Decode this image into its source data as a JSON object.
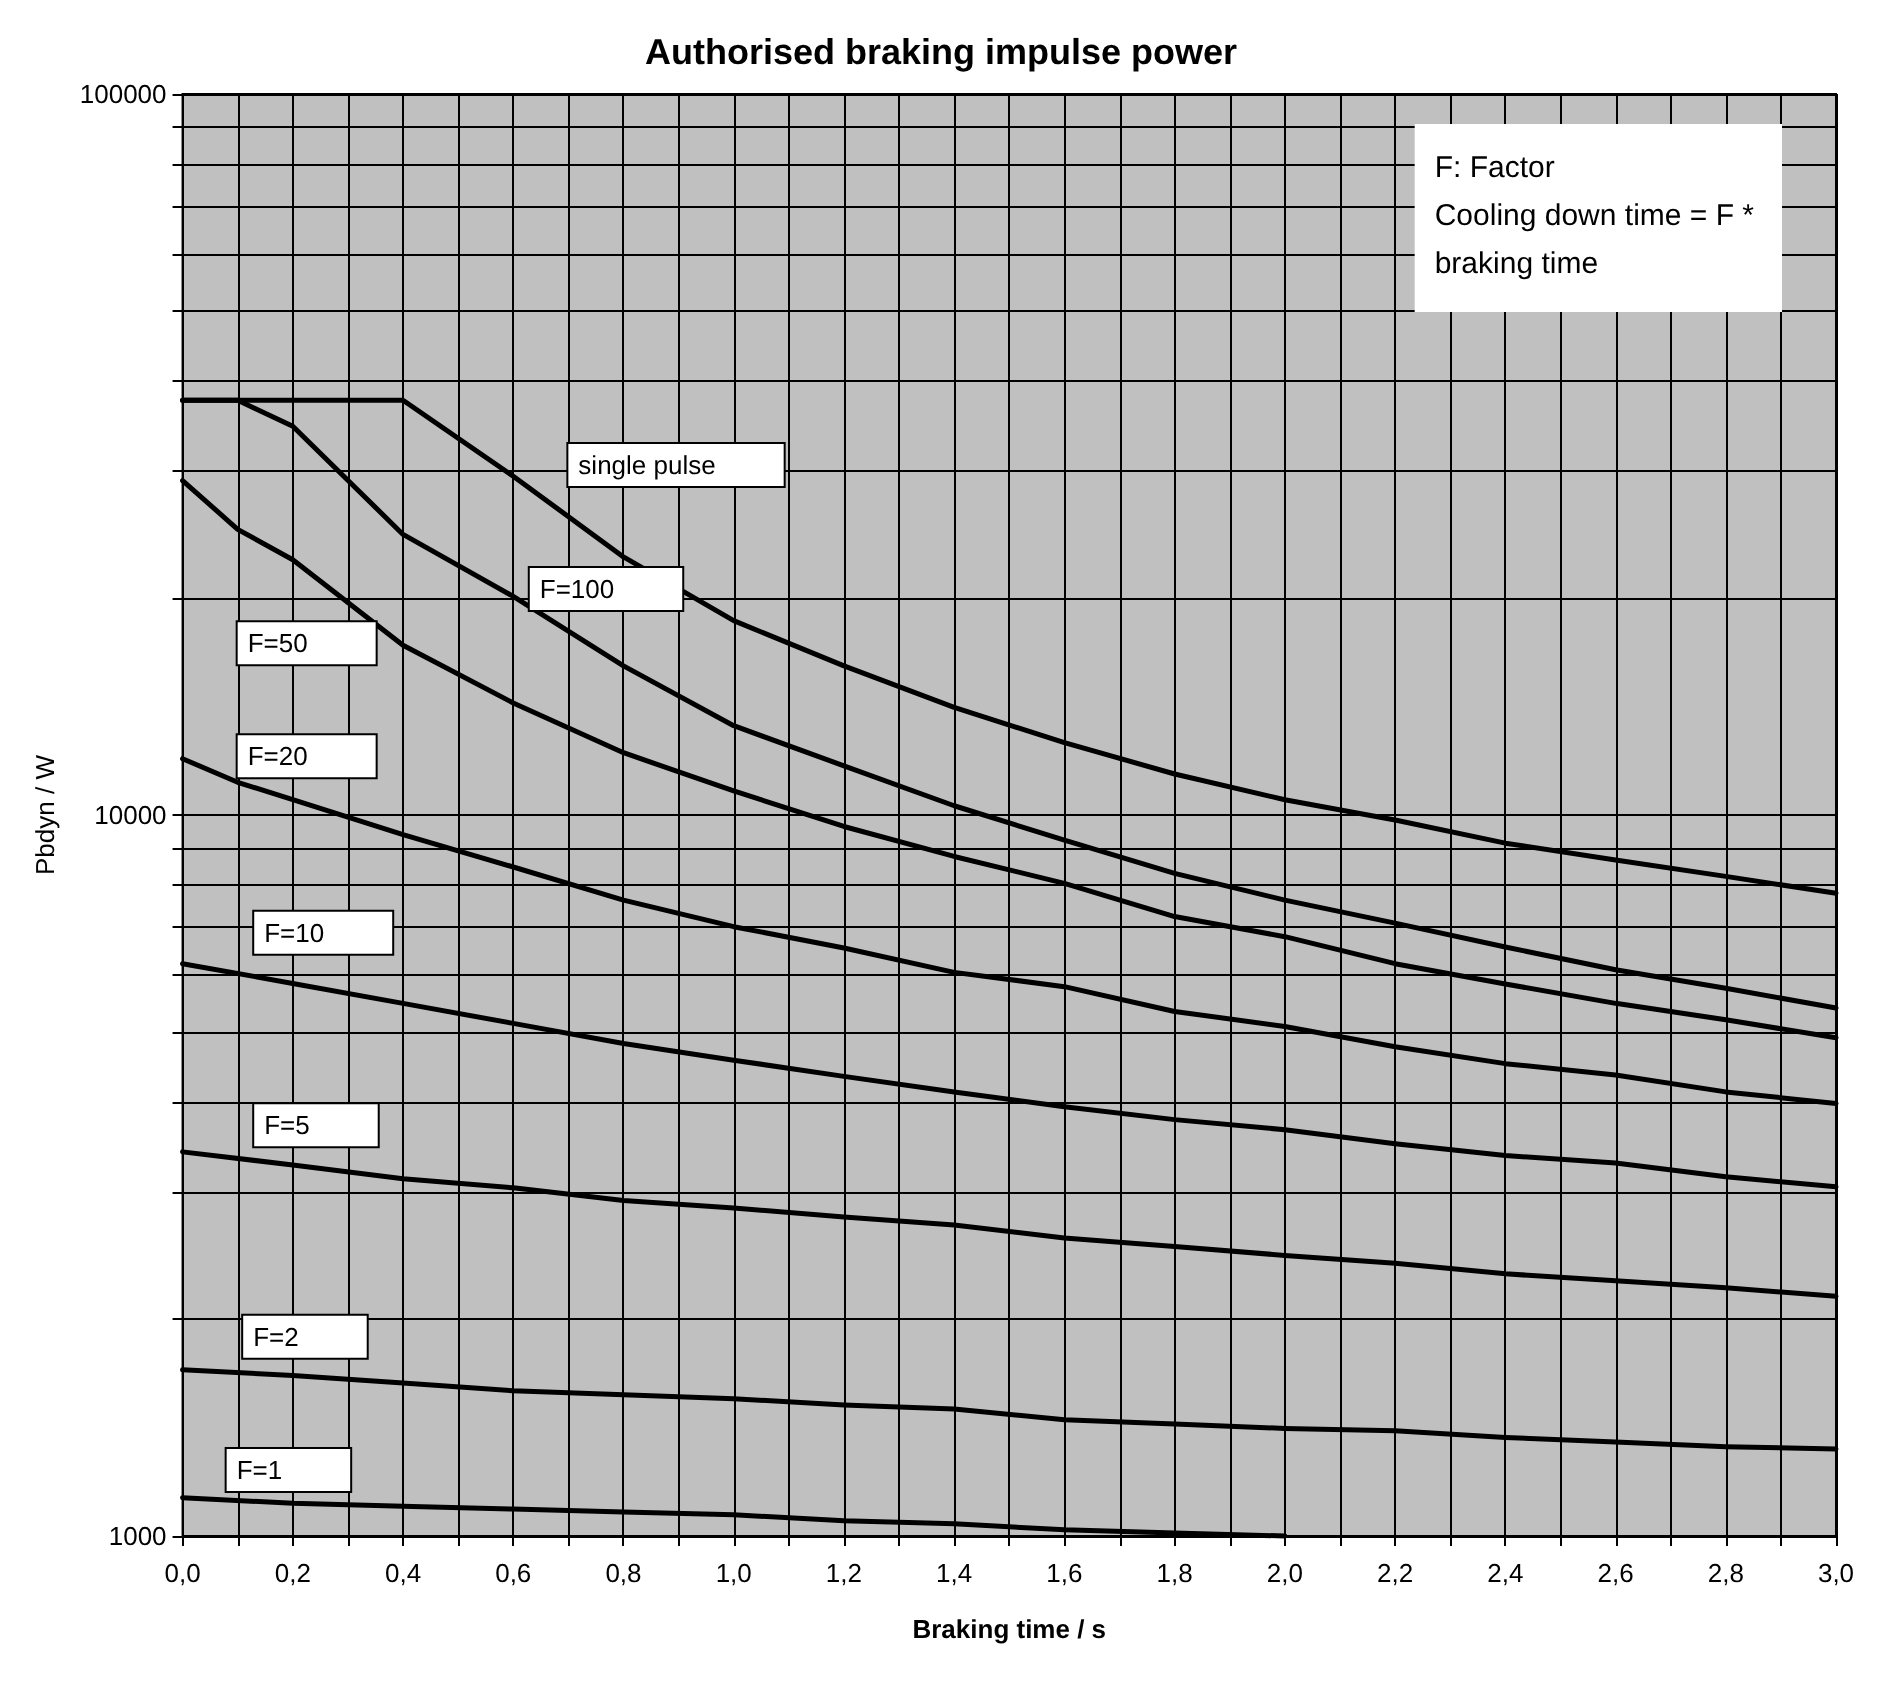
{
  "chart_data": {
    "type": "line",
    "title": "Authorised braking impulse power",
    "xlabel": "Braking time / s",
    "ylabel": "Pbdyn / W",
    "annotations": [
      "F: Factor\nCooling down time = F *\nbraking time"
    ],
    "log": "y",
    "grid": true,
    "legend": false,
    "marker": "none",
    "line_style": "solid",
    "xlim": [
      0,
      3
    ],
    "ylim": [
      1000,
      100000
    ],
    "xticks": [
      {
        "value": 0,
        "label": "0,0"
      },
      {
        "value": 0.1,
        "label": null
      },
      {
        "value": 0.2,
        "label": "0,2"
      },
      {
        "value": 0.3,
        "label": null
      },
      {
        "value": 0.4,
        "label": "0,4"
      },
      {
        "value": 0.5,
        "label": null
      },
      {
        "value": 0.6,
        "label": "0,6"
      },
      {
        "value": 0.7,
        "label": null
      },
      {
        "value": 0.8,
        "label": "0,8"
      },
      {
        "value": 0.9,
        "label": null
      },
      {
        "value": 1,
        "label": "1,0"
      },
      {
        "value": 1.1,
        "label": null
      },
      {
        "value": 1.2,
        "label": "1,2"
      },
      {
        "value": 1.3,
        "label": null
      },
      {
        "value": 1.4,
        "label": "1,4"
      },
      {
        "value": 1.5,
        "label": null
      },
      {
        "value": 1.6,
        "label": "1,6"
      },
      {
        "value": 1.7,
        "label": null
      },
      {
        "value": 1.8,
        "label": "1,8"
      },
      {
        "value": 1.9,
        "label": null
      },
      {
        "value": 2,
        "label": "2,0"
      },
      {
        "value": 2.1,
        "label": null
      },
      {
        "value": 2.2,
        "label": "2,2"
      },
      {
        "value": 2.3,
        "label": null
      },
      {
        "value": 2.4,
        "label": "2,4"
      },
      {
        "value": 2.5,
        "label": null
      },
      {
        "value": 2.6,
        "label": "2,6"
      },
      {
        "value": 2.7,
        "label": null
      },
      {
        "value": 2.8,
        "label": "2,8"
      },
      {
        "value": 2.9,
        "label": null
      },
      {
        "value": 3,
        "label": "3,0"
      }
    ],
    "yticks": [
      1000,
      {
        "value": 2000,
        "label": null
      },
      {
        "value": 3000,
        "label": null
      },
      {
        "value": 4000,
        "label": null
      },
      {
        "value": 5000,
        "label": null
      },
      {
        "value": 6000,
        "label": null
      },
      {
        "value": 7000,
        "label": null
      },
      {
        "value": 8000,
        "label": null
      },
      {
        "value": 9000,
        "label": null
      },
      10000,
      {
        "value": 20000,
        "label": null
      },
      {
        "value": 30000,
        "label": null
      },
      {
        "value": 40000,
        "label": null
      },
      {
        "value": 50000,
        "label": null
      },
      {
        "value": 60000,
        "label": null
      },
      {
        "value": 70000,
        "label": null
      },
      {
        "value": 80000,
        "label": null
      },
      {
        "value": 90000,
        "label": null
      },
      100000
    ],
    "series": [
      {
        "name": "single pulse",
        "color": "#000000",
        "x": [
          0,
          0.4,
          0.6,
          0.8,
          1,
          1.2,
          1.4,
          1.6,
          1.8,
          2,
          2.2,
          2.4,
          2.6,
          2.8,
          3
        ],
        "values": [
          37600,
          37600,
          29500,
          22800,
          18600,
          16100,
          14100,
          12600,
          11400,
          10500,
          9840,
          9140,
          8660,
          8220,
          7790
        ]
      },
      {
        "name": "F=100",
        "color": "#000000",
        "x": [
          0,
          0.1,
          0.2,
          0.4,
          0.6,
          0.8,
          1,
          1.2,
          1.4,
          1.6,
          1.8,
          2,
          2.2,
          2.4,
          2.6,
          2.8,
          3
        ],
        "values": [
          37600,
          37600,
          34600,
          24500,
          20100,
          16100,
          13300,
          11700,
          10300,
          9230,
          8300,
          7620,
          7080,
          6560,
          6100,
          5750,
          5400
        ]
      },
      {
        "name": "F=50",
        "color": "#000000",
        "x": [
          0,
          0.1,
          0.2,
          0.4,
          0.6,
          0.8,
          1,
          1.2,
          1.4,
          1.6,
          1.8,
          2,
          2.2,
          2.4,
          2.6,
          2.8,
          3
        ],
        "values": [
          29100,
          24900,
          22600,
          17200,
          14300,
          12200,
          10800,
          9640,
          8760,
          8040,
          7230,
          6780,
          6220,
          5830,
          5480,
          5200,
          4910
        ]
      },
      {
        "name": "F=20",
        "color": "#000000",
        "x": [
          0,
          0.1,
          0.2,
          0.4,
          0.6,
          0.8,
          1,
          1.2,
          1.4,
          1.6,
          1.8,
          2,
          2.2,
          2.4,
          2.6,
          2.8,
          3
        ],
        "values": [
          11970,
          11100,
          10500,
          9390,
          8470,
          7620,
          7000,
          6540,
          6050,
          5780,
          5340,
          5090,
          4770,
          4520,
          4360,
          4130,
          3980
        ]
      },
      {
        "name": "F=10",
        "color": "#000000",
        "x": [
          0,
          0.2,
          0.4,
          0.6,
          0.8,
          1,
          1.2,
          1.4,
          1.6,
          1.8,
          2,
          2.2,
          2.4,
          2.6,
          2.8,
          3
        ],
        "values": [
          6220,
          5840,
          5480,
          5140,
          4820,
          4570,
          4340,
          4130,
          3940,
          3780,
          3660,
          3500,
          3370,
          3290,
          3150,
          3050
        ]
      },
      {
        "name": "F=5",
        "color": "#000000",
        "x": [
          0,
          0.2,
          0.4,
          0.6,
          0.8,
          1,
          1.2,
          1.4,
          1.6,
          1.8,
          2,
          2.2,
          2.4,
          2.6,
          2.8,
          3
        ],
        "values": [
          3410,
          3270,
          3130,
          3040,
          2920,
          2850,
          2770,
          2700,
          2590,
          2520,
          2450,
          2390,
          2310,
          2260,
          2210,
          2150
        ]
      },
      {
        "name": "F=2",
        "color": "#000000",
        "x": [
          0,
          0.2,
          0.4,
          0.6,
          0.8,
          1,
          1.2,
          1.4,
          1.6,
          1.8,
          2,
          2.2,
          2.4,
          2.6,
          2.8,
          3
        ],
        "values": [
          1700,
          1670,
          1630,
          1590,
          1570,
          1550,
          1520,
          1500,
          1450,
          1430,
          1410,
          1400,
          1370,
          1350,
          1330,
          1320
        ]
      },
      {
        "name": "F=1",
        "color": "#000000",
        "x": [
          0,
          0.2,
          0.4,
          0.6,
          0.8,
          1,
          1.2,
          1.4,
          1.6,
          1.8,
          2
        ],
        "values": [
          1130,
          1110,
          1100,
          1090,
          1080,
          1070,
          1050,
          1040,
          1020,
          1010,
          1000
        ]
      }
    ]
  }
}
